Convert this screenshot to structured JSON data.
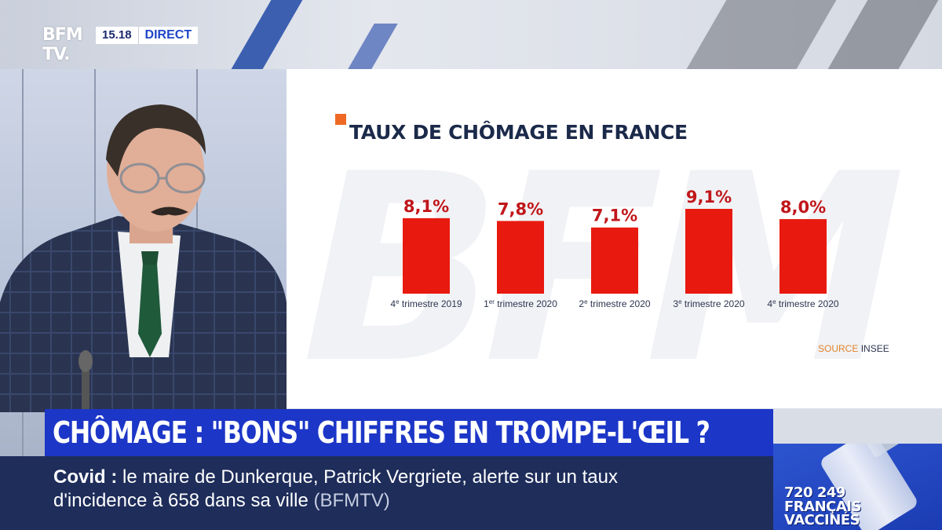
{
  "channel": {
    "logo_line1": "BFM",
    "logo_line2": "TV.",
    "time": "15.18",
    "live_label": "DIRECT"
  },
  "chart_data": {
    "type": "bar",
    "title": "TAUX DE CHÔMAGE EN FRANCE",
    "categories": [
      [
        "4",
        "e",
        " trimestre 2019"
      ],
      [
        "1",
        "er",
        " trimestre 2020"
      ],
      [
        "2",
        "e",
        " trimestre 2020"
      ],
      [
        "3",
        "e",
        " trimestre 2020"
      ],
      [
        "4",
        "e",
        " trimestre 2020"
      ]
    ],
    "values": [
      8.1,
      7.8,
      7.1,
      9.1,
      8.0
    ],
    "value_labels": [
      "8,1%",
      "7,8%",
      "7,1%",
      "9,1%",
      "8,0%"
    ],
    "ylim": [
      0,
      9.1
    ],
    "grid": false,
    "bar_color": "#e8190f",
    "label_color": "#c0161a",
    "watermark": "BFM"
  },
  "source": {
    "label": "SOURCE",
    "value": "INSEE"
  },
  "headline": "CHÔMAGE : \"BONS\" CHIFFRES EN TROMPE-L'ŒIL ?",
  "ticker": {
    "tag": "Covid",
    "separator": " :",
    "line1_text": " le maire de Dunkerque, Patrick Vergriete, alerte sur un taux",
    "line2_text": "d'incidence à 658 dans sa ville",
    "line2_source": " (BFMTV)"
  },
  "vaccine_counter": {
    "number": "720 249",
    "label_line1": "FRANÇAIS",
    "label_line2": "VACCINÉS"
  }
}
